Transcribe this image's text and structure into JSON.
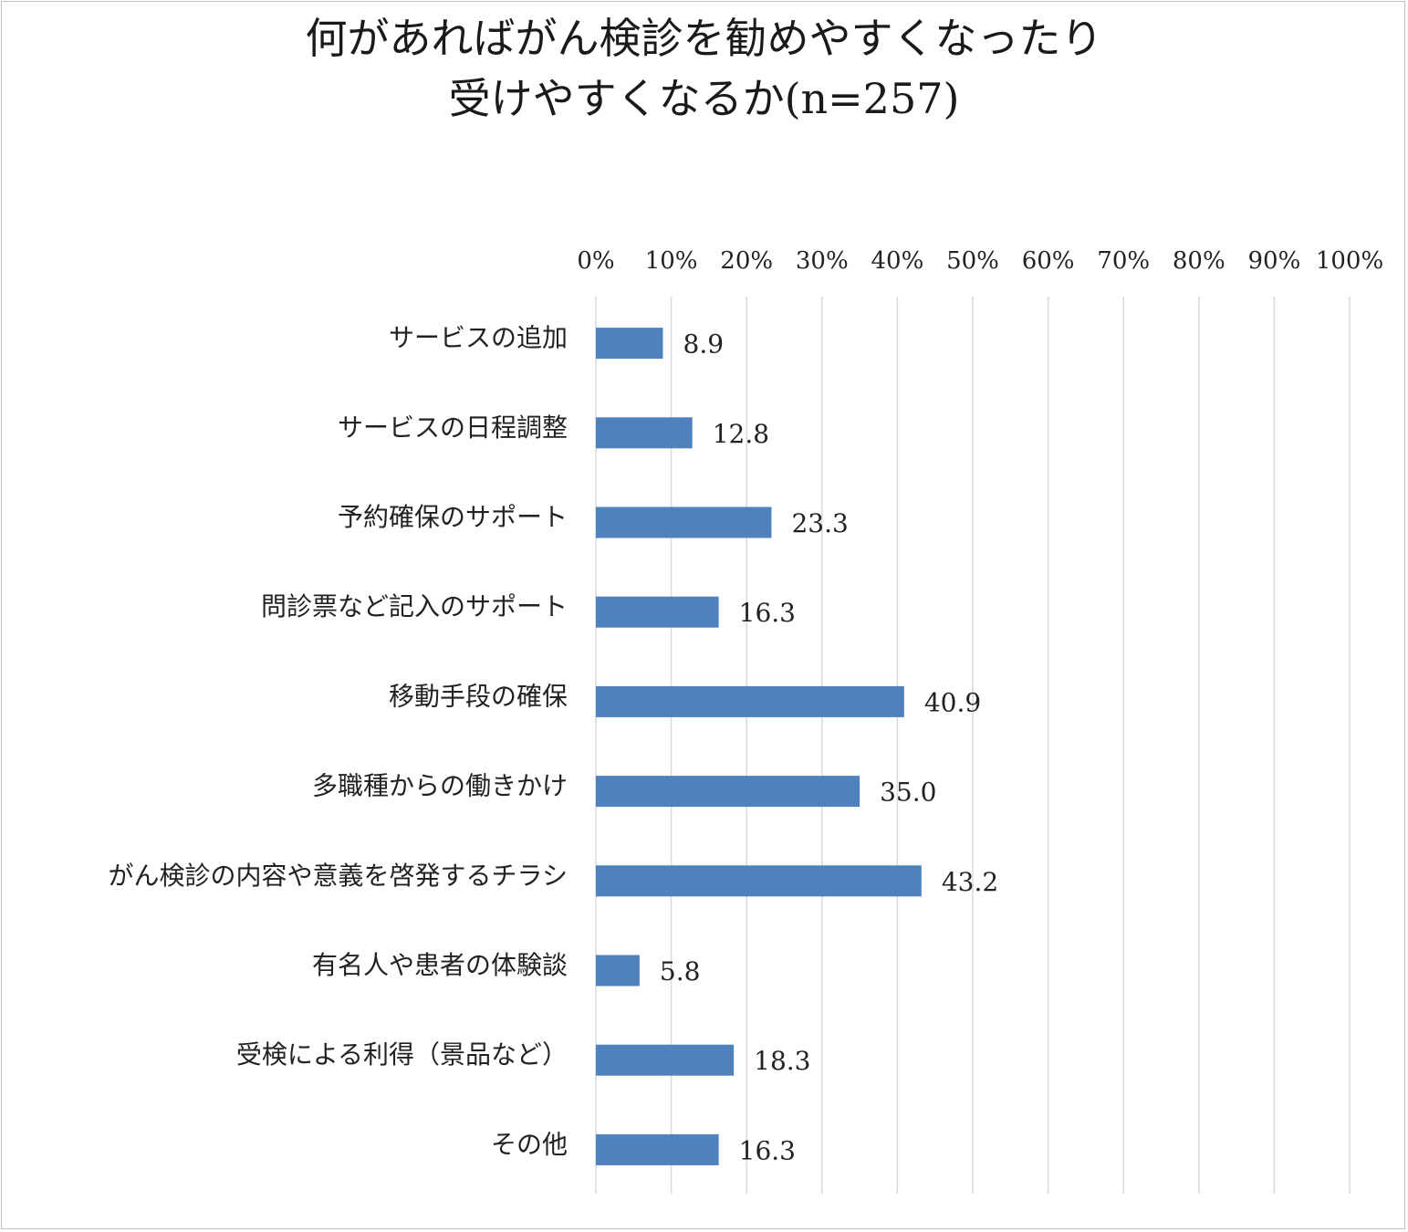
{
  "chart_data": {
    "type": "bar",
    "orientation": "horizontal",
    "title": [
      "何があればがん検診を勧めやすくなったり",
      "受けやすくなるか(n=257)"
    ],
    "categories": [
      "サービスの追加",
      "サービスの日程調整",
      "予約確保のサポート",
      "問診票など記入のサポート",
      "移動手段の確保",
      "多職種からの働きかけ",
      "がん検診の内容や意義を啓発するチラシ",
      "有名人や患者の体験談",
      "受検による利得（景品など）",
      "その他"
    ],
    "values": [
      8.9,
      12.8,
      23.3,
      16.3,
      40.9,
      35.0,
      43.2,
      5.8,
      18.3,
      16.3
    ],
    "value_labels": [
      "8.9",
      "12.8",
      "23.3",
      "16.3",
      "40.9",
      "35.0",
      "43.2",
      "5.8",
      "18.3",
      "16.3"
    ],
    "xlim": [
      0,
      100
    ],
    "x_ticks": [
      0,
      10,
      20,
      30,
      40,
      50,
      60,
      70,
      80,
      90,
      100
    ],
    "x_tick_labels": [
      "0%",
      "10%",
      "20%",
      "30%",
      "40%",
      "50%",
      "60%",
      "70%",
      "80%",
      "90%",
      "100%"
    ],
    "x_axis_position": "top",
    "grid": true,
    "legend": false,
    "colors": {
      "bar": "#4f81bd",
      "grid": "#d9d9d9"
    }
  }
}
